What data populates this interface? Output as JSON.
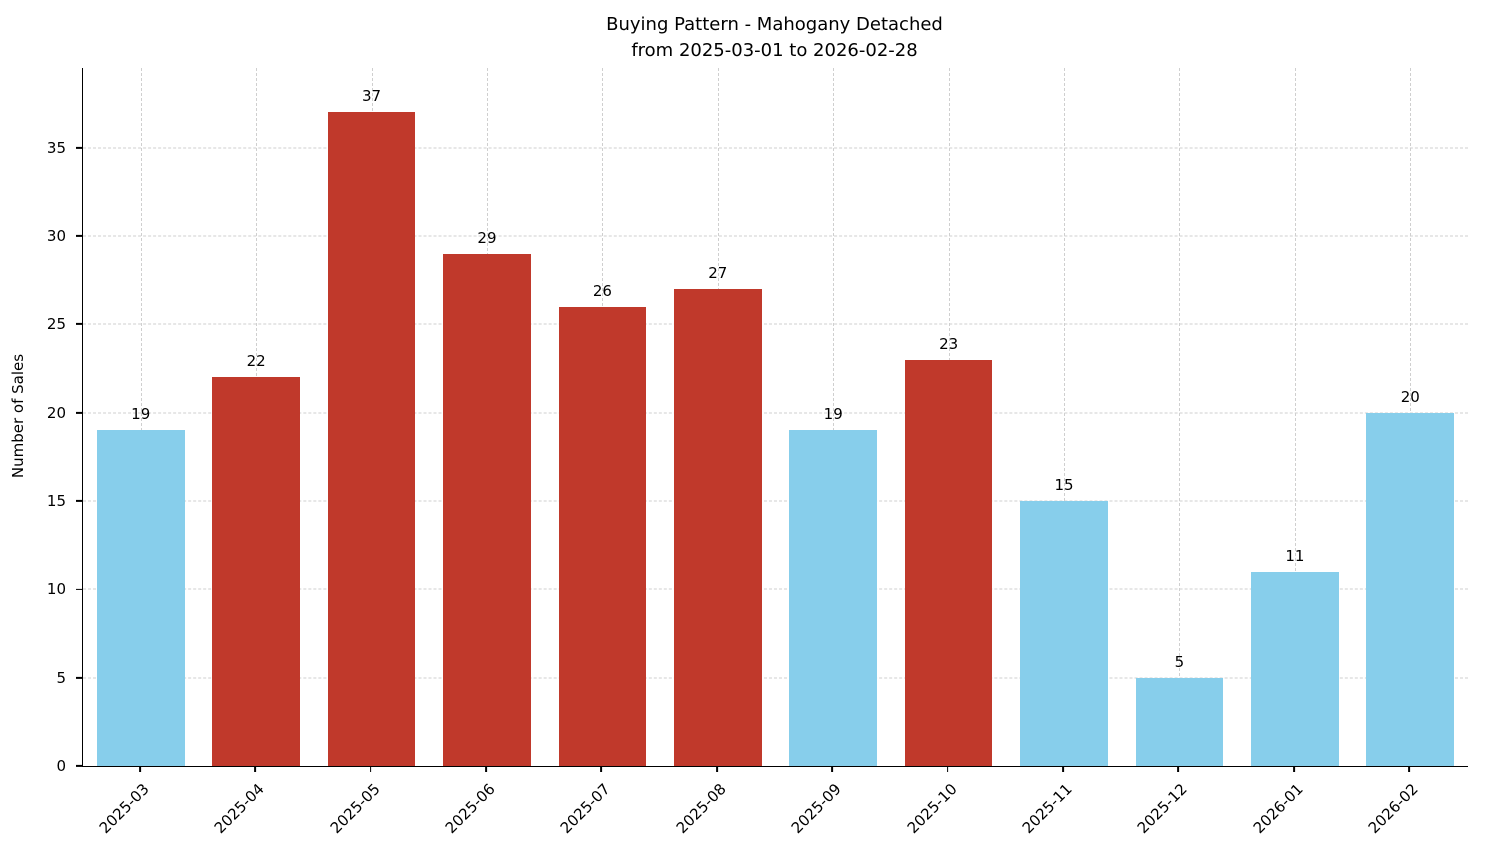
{
  "chart_data": {
    "type": "bar",
    "title_line1": "Buying Pattern - Mahogany Detached",
    "title_line2": "from 2025-03-01 to 2026-02-28",
    "ylabel": "Number of Sales",
    "xlabel": "",
    "categories": [
      "2025-03",
      "2025-04",
      "2025-05",
      "2025-06",
      "2025-07",
      "2025-08",
      "2025-09",
      "2025-10",
      "2025-11",
      "2025-12",
      "2026-01",
      "2026-02"
    ],
    "values": [
      19,
      22,
      37,
      29,
      26,
      27,
      19,
      23,
      15,
      5,
      11,
      20
    ],
    "bar_colors": [
      "#87CEEB",
      "#C0392B",
      "#C0392B",
      "#C0392B",
      "#C0392B",
      "#C0392B",
      "#87CEEB",
      "#C0392B",
      "#87CEEB",
      "#87CEEB",
      "#87CEEB",
      "#87CEEB"
    ],
    "base_color": "#87CEEB",
    "highlight_color": "#C0392B",
    "yticks": [
      0,
      5,
      10,
      15,
      20,
      25,
      30,
      35
    ],
    "ylim": [
      0,
      39.5
    ],
    "grid": true,
    "grid_style": "dashed",
    "legend": false
  }
}
